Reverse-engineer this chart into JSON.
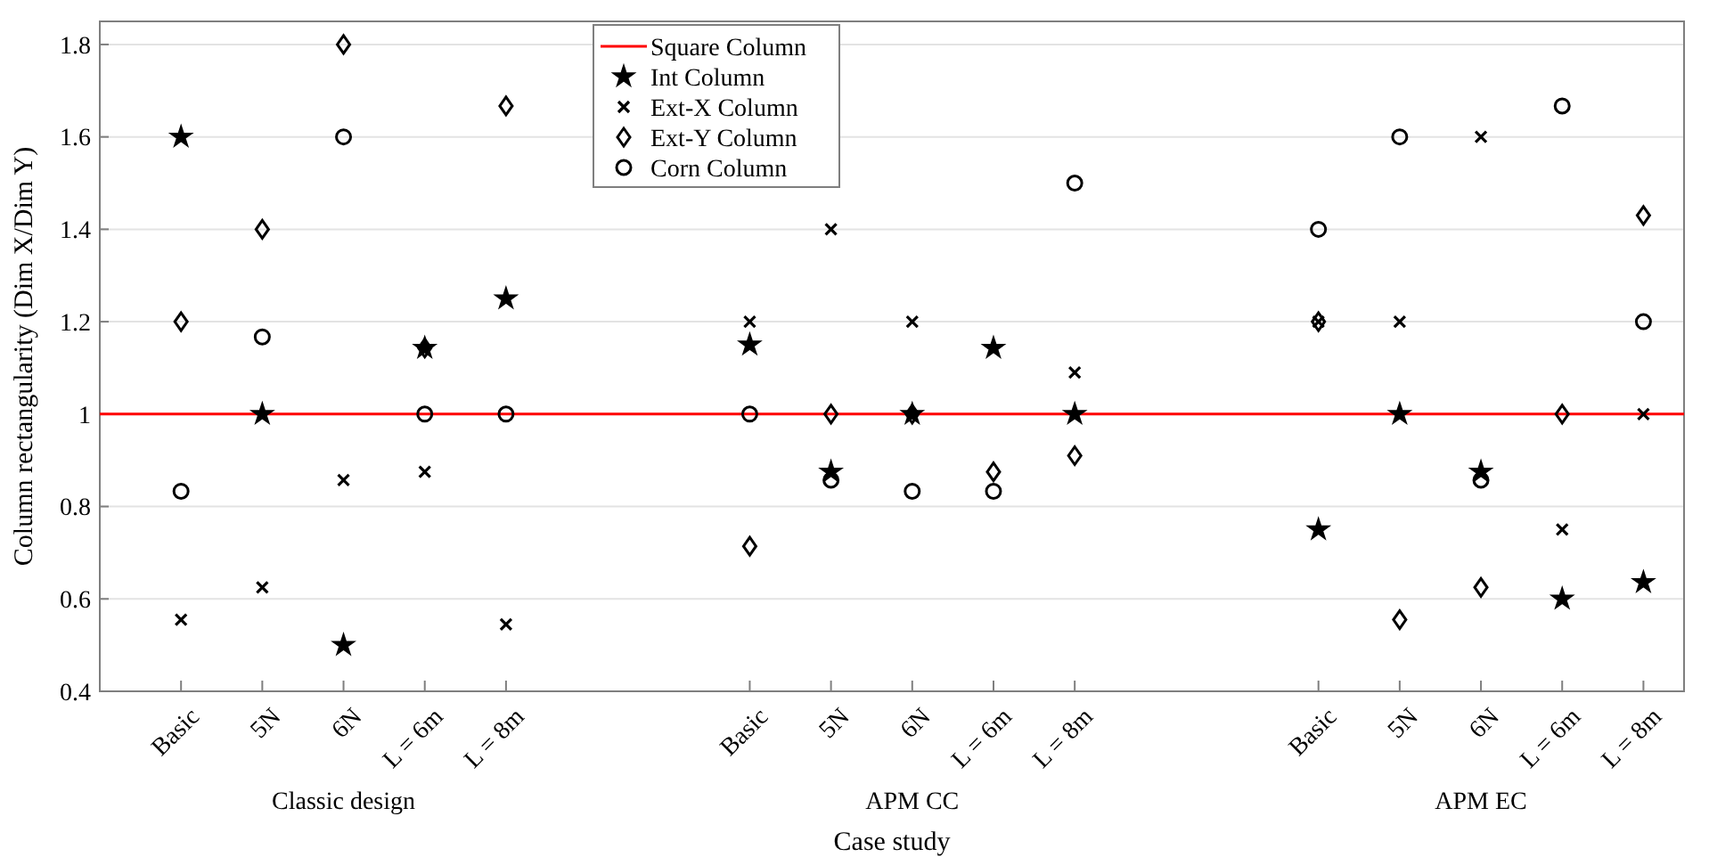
{
  "chart_data": {
    "type": "scatter",
    "xlabel": "Case study",
    "ylabel": "Column rectangularity (Dim X/Dim Y)",
    "categories": [
      "Basic",
      "5N",
      "6N",
      "L = 6m",
      "L = 8m",
      null,
      null,
      "Basic",
      "5N",
      "6N",
      "L = 6m",
      "L = 8m",
      null,
      null,
      "Basic",
      "5N",
      "6N",
      "L = 6m",
      "L = 8m"
    ],
    "series": [
      {
        "name": "Int Column",
        "color": "#000000",
        "marker": "star",
        "values": [
          1.6,
          1.0,
          0.5,
          1.143,
          1.25,
          null,
          null,
          1.15,
          0.875,
          1.0,
          1.143,
          1.0,
          null,
          null,
          0.75,
          1.0,
          0.875,
          0.6,
          0.636
        ]
      },
      {
        "name": "Ext-X Column",
        "color": "#000000",
        "marker": "cross",
        "values": [
          0.555,
          0.625,
          0.857,
          0.875,
          0.545,
          null,
          null,
          1.2,
          1.4,
          1.2,
          null,
          1.09,
          null,
          null,
          1.2,
          1.2,
          1.6,
          0.75,
          1.0
        ]
      },
      {
        "name": "Ext-Y Column",
        "color": "#000000",
        "marker": "diamond",
        "values": [
          1.2,
          1.4,
          1.8,
          1.143,
          1.667,
          null,
          null,
          0.714,
          1.0,
          1.0,
          0.875,
          0.91,
          null,
          null,
          1.2,
          0.555,
          0.625,
          1.0,
          1.43
        ]
      },
      {
        "name": "Corn Column",
        "color": "#000000",
        "marker": "circle",
        "values": [
          0.833,
          1.167,
          1.6,
          1.0,
          1.0,
          null,
          null,
          1.0,
          0.857,
          0.833,
          0.833,
          1.5,
          null,
          null,
          1.4,
          1.6,
          0.857,
          1.667,
          1.2
        ]
      }
    ],
    "ref_lines": [
      {
        "axis": "y",
        "value": 1,
        "label": "Square Column",
        "color": "#ff0000",
        "line_style": "solid"
      }
    ],
    "annotations": [
      "Classic design",
      "APM CC",
      "APM EC"
    ],
    "ylim": [
      0.4,
      1.85
    ],
    "yticks": [
      0.4,
      0.6,
      0.8,
      1,
      1.2,
      1.4,
      1.6,
      1.8
    ],
    "grid": "y",
    "legend": "top"
  }
}
